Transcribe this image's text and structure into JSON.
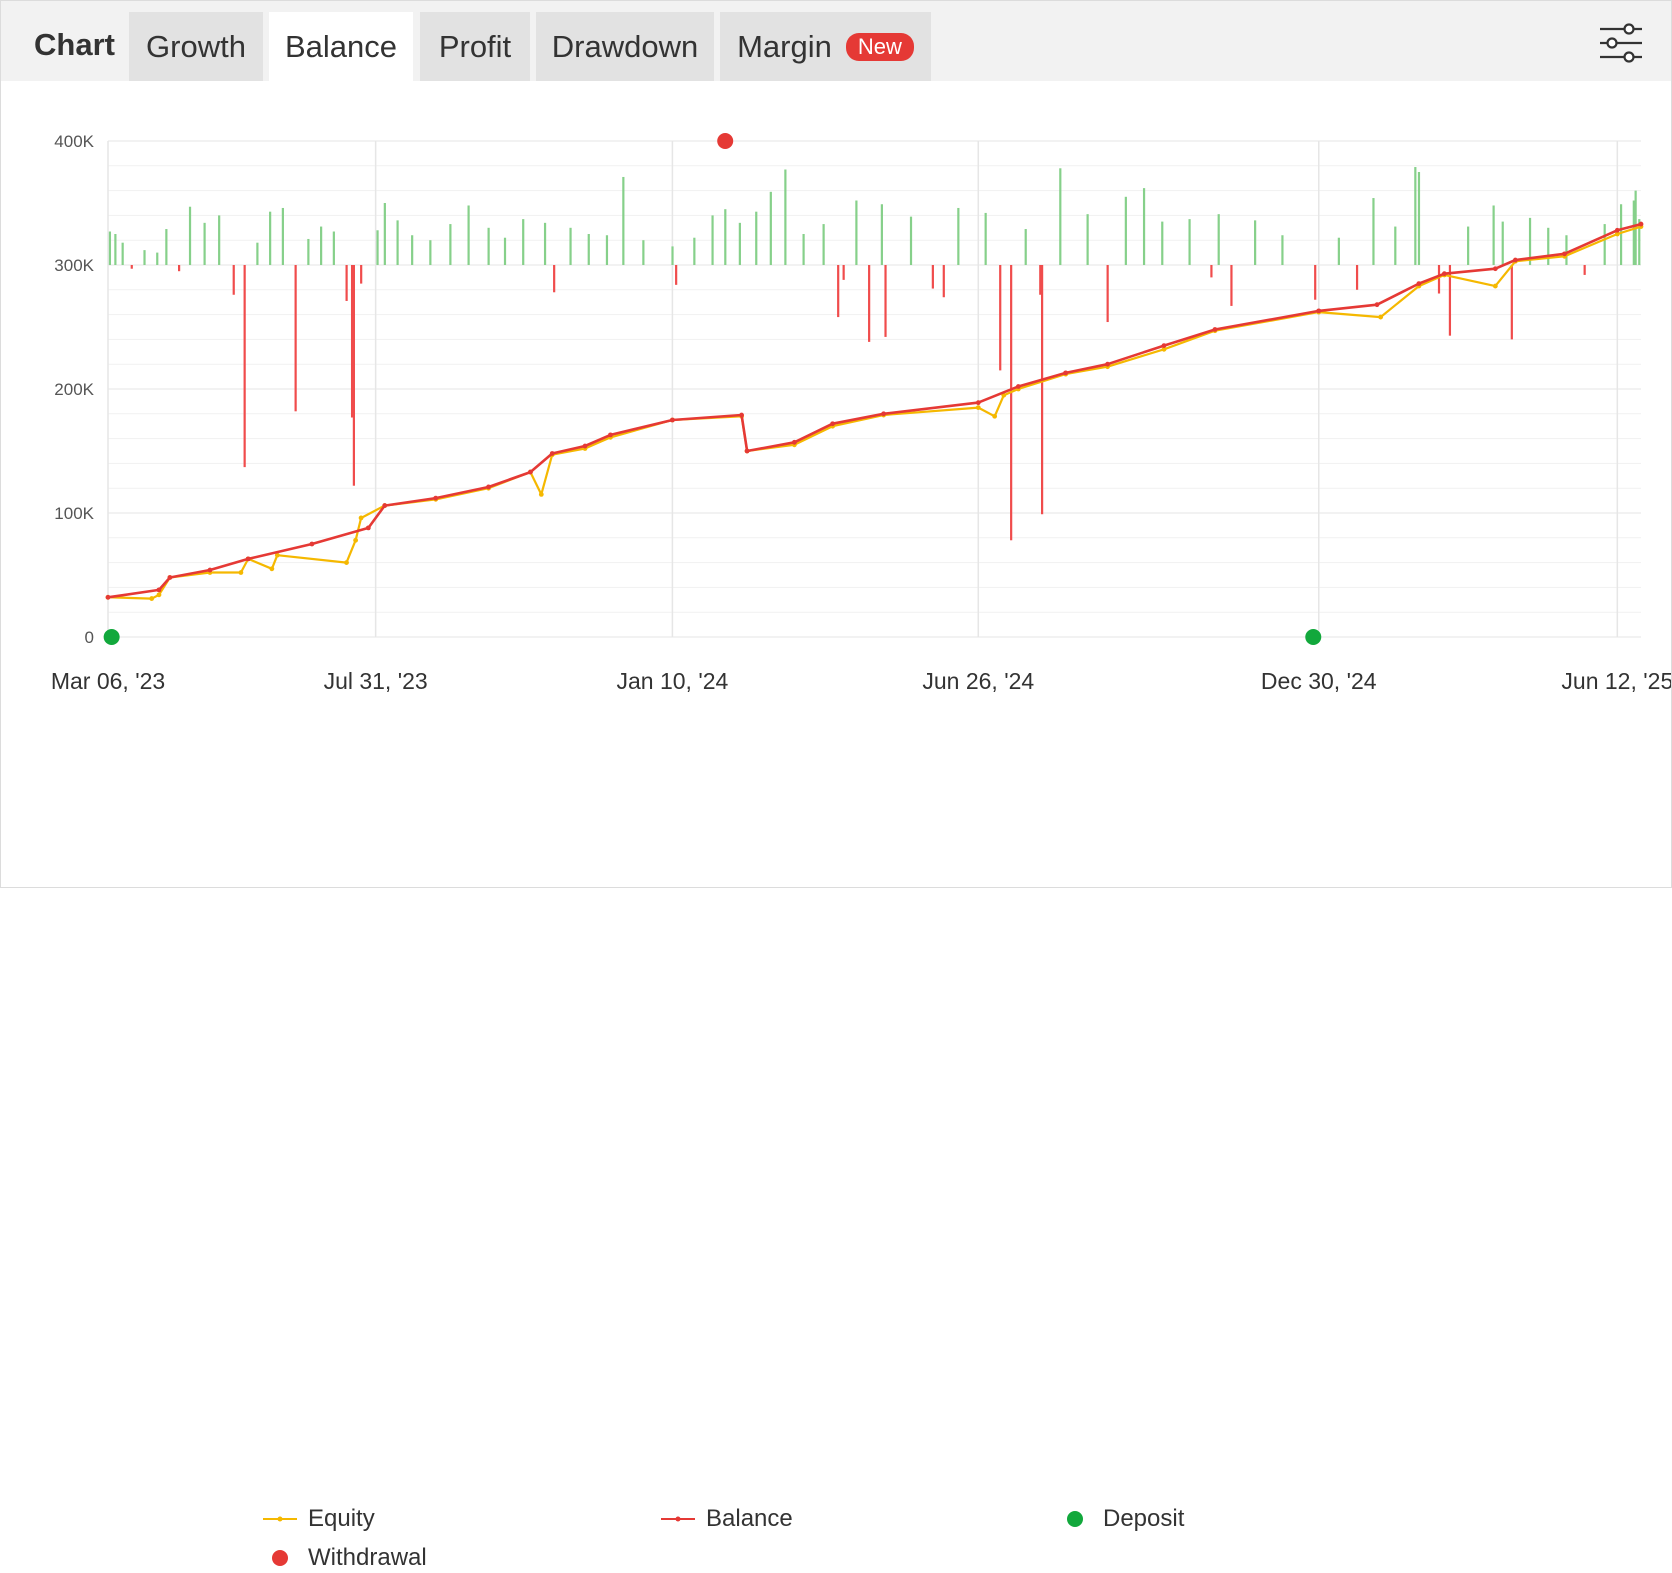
{
  "header": {
    "title": "Chart",
    "tabs": [
      {
        "label": "Growth",
        "active": false
      },
      {
        "label": "Balance",
        "active": true
      },
      {
        "label": "Profit",
        "active": false
      },
      {
        "label": "Drawdown",
        "active": false
      },
      {
        "label": "Margin",
        "active": false,
        "badge": "New"
      }
    ],
    "settings_icon": "sliders-icon"
  },
  "colors": {
    "balance": "#e53935",
    "equity": "#f5b800",
    "deposit": "#12a83c",
    "withdrawal": "#e53935",
    "positive_bar": "#86d08a",
    "negative_bar": "#f04c4c",
    "grid": "#e6e6e6",
    "badge": "#e53935"
  },
  "chart_data": {
    "type": "line",
    "x_start": "Mar 06, '23",
    "x_end": "Jun 25, '25",
    "x_ticks": [
      "Mar 06, '23",
      "Jul 31, '23",
      "Jan 10, '24",
      "Jun 26, '24",
      "Dec 30, '24",
      "Jun 12, '25"
    ],
    "y_ticks": [
      "0",
      "100K",
      "200K",
      "300K",
      "400K"
    ],
    "ylim": [
      0,
      400000
    ],
    "grid": true,
    "legend_position": "bottom",
    "series": [
      {
        "name": "Balance",
        "points": [
          [
            "Mar 06, '23",
            32000
          ],
          [
            "Apr 03, '23",
            38000
          ],
          [
            "Apr 09, '23",
            48000
          ],
          [
            "May 01, '23",
            54000
          ],
          [
            "May 22, '23",
            63000
          ],
          [
            "Jun 26, '23",
            75000
          ],
          [
            "Jul 27, '23",
            88000
          ],
          [
            "Aug 05, '23",
            106000
          ],
          [
            "Sep 02, '23",
            112000
          ],
          [
            "Oct 01, '23",
            121000
          ],
          [
            "Oct 24, '23",
            133000
          ],
          [
            "Nov 05, '23",
            148000
          ],
          [
            "Nov 23, '23",
            154000
          ],
          [
            "Dec 07, '23",
            163000
          ],
          [
            "Jan 10, '24",
            175000
          ],
          [
            "Feb 17, '24",
            179000
          ],
          [
            "Feb 20, '24",
            150000
          ],
          [
            "Mar 17, '24",
            157000
          ],
          [
            "Apr 07, '24",
            172000
          ],
          [
            "May 05, '24",
            180000
          ],
          [
            "Jun 26, '24",
            189000
          ],
          [
            "Jul 18, '24",
            202000
          ],
          [
            "Aug 13, '24",
            213000
          ],
          [
            "Sep 05, '24",
            220000
          ],
          [
            "Oct 06, '24",
            235000
          ],
          [
            "Nov 03, '24",
            248000
          ],
          [
            "Dec 30, '24",
            263000
          ],
          [
            "Jan 31, '25",
            268000
          ],
          [
            "Feb 23, '25",
            285000
          ],
          [
            "Mar 09, '25",
            293000
          ],
          [
            "Apr 06, '25",
            297000
          ],
          [
            "Apr 17, '25",
            304000
          ],
          [
            "May 14, '25",
            309000
          ],
          [
            "Jun 12, '25",
            328000
          ],
          [
            "Jun 25, '25",
            333000
          ]
        ]
      },
      {
        "name": "Equity",
        "points": [
          [
            "Mar 06, '23",
            32000
          ],
          [
            "Mar 30, '23",
            31000
          ],
          [
            "Apr 03, '23",
            34000
          ],
          [
            "Apr 09, '23",
            48000
          ],
          [
            "May 01, '23",
            52000
          ],
          [
            "May 18, '23",
            52000
          ],
          [
            "May 22, '23",
            63000
          ],
          [
            "Jun 04, '23",
            55000
          ],
          [
            "Jun 07, '23",
            66000
          ],
          [
            "Jul 15, '23",
            60000
          ],
          [
            "Jul 20, '23",
            78000
          ],
          [
            "Jul 23, '23",
            96000
          ],
          [
            "Aug 05, '23",
            106000
          ],
          [
            "Sep 02, '23",
            111000
          ],
          [
            "Oct 01, '23",
            120000
          ],
          [
            "Oct 24, '23",
            133000
          ],
          [
            "Oct 30, '23",
            115000
          ],
          [
            "Nov 05, '23",
            147000
          ],
          [
            "Nov 23, '23",
            152000
          ],
          [
            "Dec 07, '23",
            161000
          ],
          [
            "Jan 10, '24",
            175000
          ],
          [
            "Feb 17, '24",
            178000
          ],
          [
            "Feb 20, '24",
            150000
          ],
          [
            "Mar 17, '24",
            155000
          ],
          [
            "Apr 07, '24",
            170000
          ],
          [
            "May 05, '24",
            179000
          ],
          [
            "Jun 26, '24",
            185000
          ],
          [
            "Jul 05, '24",
            178000
          ],
          [
            "Jul 10, '24",
            195000
          ],
          [
            "Jul 18, '24",
            200000
          ],
          [
            "Aug 13, '24",
            212000
          ],
          [
            "Sep 05, '24",
            218000
          ],
          [
            "Oct 06, '24",
            232000
          ],
          [
            "Nov 03, '24",
            247000
          ],
          [
            "Dec 30, '24",
            262000
          ],
          [
            "Feb 02, '25",
            258000
          ],
          [
            "Feb 23, '25",
            283000
          ],
          [
            "Mar 09, '25",
            292000
          ],
          [
            "Apr 06, '25",
            283000
          ],
          [
            "Apr 17, '25",
            303000
          ],
          [
            "May 14, '25",
            307000
          ],
          [
            "Jun 12, '25",
            325000
          ],
          [
            "Jun 25, '25",
            331000
          ]
        ]
      }
    ],
    "daily_profit_bars": [
      {
        "x": "Mar 07, '23",
        "value": 27000
      },
      {
        "x": "Mar 10, '23",
        "value": 25000
      },
      {
        "x": "Mar 14, '23",
        "value": 18000
      },
      {
        "x": "Mar 19, '23",
        "value": -3000
      },
      {
        "x": "Mar 26, '23",
        "value": 12000
      },
      {
        "x": "Apr 02, '23",
        "value": 10000
      },
      {
        "x": "Apr 07, '23",
        "value": 29000
      },
      {
        "x": "Apr 14, '23",
        "value": -5000
      },
      {
        "x": "Apr 20, '23",
        "value": 47000
      },
      {
        "x": "Apr 28, '23",
        "value": 34000
      },
      {
        "x": "May 06, '23",
        "value": 40000
      },
      {
        "x": "May 14, '23",
        "value": -24000
      },
      {
        "x": "May 20, '23",
        "value": -163000
      },
      {
        "x": "May 27, '23",
        "value": 18000
      },
      {
        "x": "Jun 03, '23",
        "value": 43000
      },
      {
        "x": "Jun 10, '23",
        "value": 46000
      },
      {
        "x": "Jun 17, '23",
        "value": -118000
      },
      {
        "x": "Jun 24, '23",
        "value": 21000
      },
      {
        "x": "Jul 01, '23",
        "value": 31000
      },
      {
        "x": "Jul 08, '23",
        "value": 27000
      },
      {
        "x": "Jul 15, '23",
        "value": -29000
      },
      {
        "x": "Jul 18, '23",
        "value": -123000
      },
      {
        "x": "Jul 19, '23",
        "value": -178000
      },
      {
        "x": "Jul 23, '23",
        "value": -15000
      },
      {
        "x": "Aug 01, '23",
        "value": 28000
      },
      {
        "x": "Aug 05, '23",
        "value": 50000
      },
      {
        "x": "Aug 12, '23",
        "value": 36000
      },
      {
        "x": "Aug 20, '23",
        "value": 24000
      },
      {
        "x": "Aug 30, '23",
        "value": 20000
      },
      {
        "x": "Sep 10, '23",
        "value": 33000
      },
      {
        "x": "Sep 20, '23",
        "value": 48000
      },
      {
        "x": "Oct 01, '23",
        "value": 30000
      },
      {
        "x": "Oct 10, '23",
        "value": 22000
      },
      {
        "x": "Oct 20, '23",
        "value": 37000
      },
      {
        "x": "Nov 01, '23",
        "value": 34000
      },
      {
        "x": "Nov 06, '23",
        "value": -22000
      },
      {
        "x": "Nov 15, '23",
        "value": 30000
      },
      {
        "x": "Nov 25, '23",
        "value": 25000
      },
      {
        "x": "Dec 05, '23",
        "value": 24000
      },
      {
        "x": "Dec 14, '23",
        "value": 71000
      },
      {
        "x": "Dec 25, '23",
        "value": 20000
      },
      {
        "x": "Jan 10, '24",
        "value": 15000
      },
      {
        "x": "Jan 12, '24",
        "value": -16000
      },
      {
        "x": "Jan 22, '24",
        "value": 22000
      },
      {
        "x": "Feb 01, '24",
        "value": 40000
      },
      {
        "x": "Feb 08, '24",
        "value": 45000
      },
      {
        "x": "Feb 16, '24",
        "value": 34000
      },
      {
        "x": "Feb 25, '24",
        "value": 43000
      },
      {
        "x": "Mar 04, '24",
        "value": 59000
      },
      {
        "x": "Mar 12, '24",
        "value": 77000
      },
      {
        "x": "Mar 22, '24",
        "value": 25000
      },
      {
        "x": "Apr 02, '24",
        "value": 33000
      },
      {
        "x": "Apr 10, '24",
        "value": -42000
      },
      {
        "x": "Apr 13, '24",
        "value": -12000
      },
      {
        "x": "Apr 20, '24",
        "value": 52000
      },
      {
        "x": "Apr 27, '24",
        "value": -62000
      },
      {
        "x": "May 04, '24",
        "value": 49000
      },
      {
        "x": "May 06, '24",
        "value": -58000
      },
      {
        "x": "May 20, '24",
        "value": 39000
      },
      {
        "x": "Jun 01, '24",
        "value": -19000
      },
      {
        "x": "Jun 07, '24",
        "value": -26000
      },
      {
        "x": "Jun 15, '24",
        "value": 46000
      },
      {
        "x": "Jun 30, '24",
        "value": 42000
      },
      {
        "x": "Jul 08, '24",
        "value": -85000
      },
      {
        "x": "Jul 14, '24",
        "value": -222000
      },
      {
        "x": "Jul 22, '24",
        "value": 29000
      },
      {
        "x": "Jul 30, '24",
        "value": -24000
      },
      {
        "x": "Jul 31, '24",
        "value": -201000
      },
      {
        "x": "Aug 10, '24",
        "value": 78000
      },
      {
        "x": "Aug 25, '24",
        "value": 41000
      },
      {
        "x": "Sep 05, '24",
        "value": -46000
      },
      {
        "x": "Sep 15, '24",
        "value": 55000
      },
      {
        "x": "Sep 25, '24",
        "value": 62000
      },
      {
        "x": "Oct 05, '24",
        "value": 35000
      },
      {
        "x": "Oct 20, '24",
        "value": 37000
      },
      {
        "x": "Nov 01, '24",
        "value": -10000
      },
      {
        "x": "Nov 05, '24",
        "value": 41000
      },
      {
        "x": "Nov 12, '24",
        "value": -33000
      },
      {
        "x": "Nov 25, '24",
        "value": 36000
      },
      {
        "x": "Dec 10, '24",
        "value": 24000
      },
      {
        "x": "Dec 28, '24",
        "value": -28000
      },
      {
        "x": "Jan 10, '25",
        "value": 22000
      },
      {
        "x": "Jan 20, '25",
        "value": -20000
      },
      {
        "x": "Jan 29, '25",
        "value": 54000
      },
      {
        "x": "Feb 10, '25",
        "value": 31000
      },
      {
        "x": "Feb 21, '25",
        "value": 79000
      },
      {
        "x": "Feb 23, '25",
        "value": 75000
      },
      {
        "x": "Mar 06, '25",
        "value": -23000
      },
      {
        "x": "Mar 12, '25",
        "value": -57000
      },
      {
        "x": "Mar 22, '25",
        "value": 31000
      },
      {
        "x": "Apr 05, '25",
        "value": 48000
      },
      {
        "x": "Apr 10, '25",
        "value": 35000
      },
      {
        "x": "Apr 15, '25",
        "value": -60000
      },
      {
        "x": "Apr 25, '25",
        "value": 38000
      },
      {
        "x": "May 05, '25",
        "value": 30000
      },
      {
        "x": "May 15, '25",
        "value": 24000
      },
      {
        "x": "May 25, '25",
        "value": -8000
      },
      {
        "x": "Jun 05, '25",
        "value": 33000
      },
      {
        "x": "Jun 14, '25",
        "value": 49000
      },
      {
        "x": "Jun 21, '25",
        "value": 52000
      },
      {
        "x": "Jun 22, '25",
        "value": 60000
      },
      {
        "x": "Jun 24, '25",
        "value": 37000
      }
    ],
    "deposits": [
      {
        "x": "Mar 08, '23",
        "value": 0
      },
      {
        "x": "Dec 27, '24",
        "value": 0
      }
    ],
    "withdrawals": [
      {
        "x": "Feb 08, '24",
        "value": 400000
      }
    ],
    "legend": [
      "Equity",
      "Balance",
      "Deposit",
      "Withdrawal"
    ]
  }
}
